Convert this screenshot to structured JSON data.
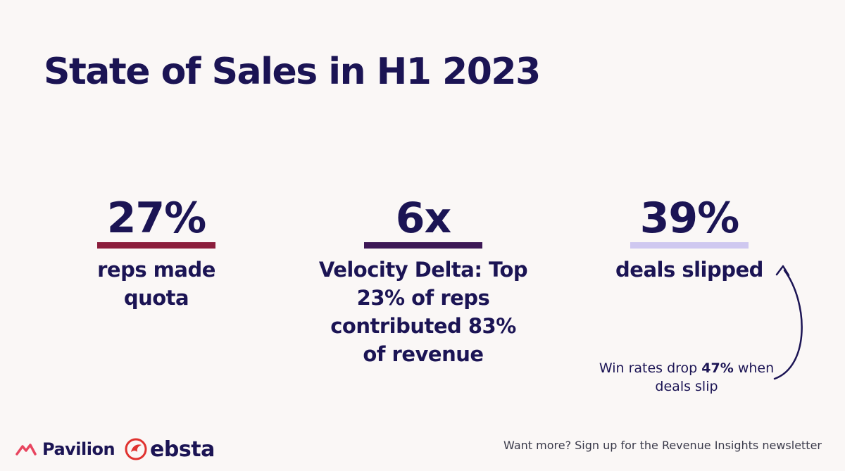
{
  "title": "State of Sales in H1 2023",
  "stats": [
    {
      "value": "27%",
      "label": "reps made quota",
      "underline_color": "#8b1d3c"
    },
    {
      "value": "6x",
      "label": "Velocity Delta: Top 23% of reps contributed 83% of revenue",
      "underline_color": "#3d1856"
    },
    {
      "value": "39%",
      "label": "deals slipped",
      "underline_color": "#cfc8f0"
    }
  ],
  "note": {
    "prefix": "Win rates drop ",
    "bold": "47%",
    "suffix": " when deals slip"
  },
  "logos": {
    "pavilion": "Pavilion",
    "ebsta": "ebsta"
  },
  "footer": {
    "cta": "Want more? Sign up for the Revenue Insights newsletter"
  },
  "colors": {
    "background": "#faf7f6",
    "text": "#1b1454",
    "pavilion_accent": "#e8455f",
    "ebsta_accent": "#e0322f"
  }
}
